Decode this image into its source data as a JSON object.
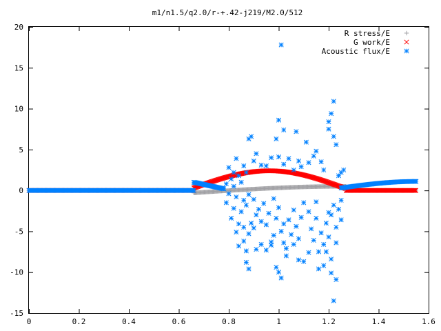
{
  "chart_data": {
    "type": "scatter",
    "title": "m1/n1.5/q2.0/r-+.42-j219/M2.0/512",
    "xlabel": "",
    "ylabel": "",
    "xlim": [
      0,
      1.6
    ],
    "ylim": [
      -15,
      20
    ],
    "x_ticks": [
      "0",
      "0.2",
      "0.4",
      "0.6",
      "0.8",
      "1",
      "1.2",
      "1.4",
      "1.6"
    ],
    "y_ticks": [
      "20",
      "15",
      "10",
      "5",
      "0",
      "-5",
      "-10",
      "-15"
    ],
    "grid": false,
    "legend_position": "top-right",
    "series": [
      {
        "name": "R stress/E",
        "color": "#a0a0a4",
        "marker": "plus",
        "segments": [
          {
            "x_start": 0.0,
            "x_end": 0.66,
            "shape": "flat",
            "y0": 0
          },
          {
            "x_start": 0.66,
            "x_end": 1.27,
            "shape": "rise",
            "y0": -0.3,
            "y1": 0.5
          },
          {
            "x_start": 1.27,
            "x_end": 1.55,
            "shape": "flat",
            "y0": 0
          }
        ]
      },
      {
        "name": "G work/E",
        "color": "#ff0000",
        "marker": "cross",
        "segments": [
          {
            "x_start": 0.0,
            "x_end": 0.66,
            "shape": "flat",
            "y0": 0
          },
          {
            "x_start": 0.66,
            "x_end": 1.27,
            "shape": "hump",
            "y0": 0.3,
            "peak": 2.4,
            "y1": 0.2
          },
          {
            "x_start": 1.27,
            "x_end": 1.55,
            "shape": "flat",
            "y0": 0
          }
        ]
      },
      {
        "name": "Acoustic flux/E",
        "color": "#0080ff",
        "marker": "star",
        "segments": [
          {
            "x_start": 0.0,
            "x_end": 0.66,
            "shape": "flat",
            "y0": 0
          },
          {
            "x_start": 0.66,
            "x_end": 0.78,
            "shape": "line",
            "y0": 1.0,
            "y1": 0.2
          },
          {
            "x_start": 1.25,
            "x_end": 1.55,
            "shape": "rise",
            "y0": 0.3,
            "y1": 1.1
          }
        ],
        "scatter": [
          [
            1.01,
            17.8
          ],
          [
            1.22,
            10.9
          ],
          [
            1.21,
            9.4
          ],
          [
            1.2,
            8.4
          ],
          [
            1.2,
            7.5
          ],
          [
            1.23,
            5.6
          ],
          [
            1.22,
            6.6
          ],
          [
            1.0,
            8.6
          ],
          [
            1.02,
            7.4
          ],
          [
            1.07,
            7.2
          ],
          [
            0.99,
            6.3
          ],
          [
            1.11,
            5.9
          ],
          [
            1.12,
            3.4
          ],
          [
            1.15,
            4.8
          ],
          [
            1.17,
            3.5
          ],
          [
            1.18,
            2.5
          ],
          [
            0.89,
            6.6
          ],
          [
            0.88,
            6.3
          ],
          [
            0.91,
            4.5
          ],
          [
            0.9,
            3.6
          ],
          [
            0.93,
            3.1
          ],
          [
            0.83,
            3.9
          ],
          [
            0.86,
            3.0
          ],
          [
            0.87,
            2.2
          ],
          [
            0.82,
            2.2
          ],
          [
            0.8,
            2.8
          ],
          [
            0.97,
            4.0
          ],
          [
            0.95,
            3.0
          ],
          [
            1.04,
            3.9
          ],
          [
            1.0,
            4.1
          ],
          [
            1.02,
            3.2
          ],
          [
            1.08,
            3.6
          ],
          [
            1.06,
            2.5
          ],
          [
            1.14,
            4.2
          ],
          [
            1.09,
            2.9
          ],
          [
            1.25,
            2.2
          ],
          [
            1.26,
            2.5
          ],
          [
            1.24,
            1.8
          ],
          [
            0.79,
            0.8
          ],
          [
            0.82,
            0.5
          ],
          [
            0.85,
            1.0
          ],
          [
            0.81,
            1.4
          ],
          [
            0.84,
            1.8
          ],
          [
            0.8,
            -0.4
          ],
          [
            0.83,
            -0.8
          ],
          [
            0.86,
            -1.2
          ],
          [
            0.79,
            -1.5
          ],
          [
            0.82,
            -2.2
          ],
          [
            0.88,
            -0.5
          ],
          [
            0.87,
            -1.8
          ],
          [
            0.85,
            -2.6
          ],
          [
            0.81,
            -3.4
          ],
          [
            0.84,
            -4.1
          ],
          [
            0.9,
            -1.1
          ],
          [
            0.92,
            -2.3
          ],
          [
            0.91,
            -3.0
          ],
          [
            0.93,
            -3.8
          ],
          [
            0.89,
            -4.0
          ],
          [
            0.86,
            -4.5
          ],
          [
            0.83,
            -5.1
          ],
          [
            0.88,
            -5.3
          ],
          [
            0.9,
            -4.6
          ],
          [
            0.95,
            -4.2
          ],
          [
            0.96,
            -2.8
          ],
          [
            0.94,
            -1.6
          ],
          [
            0.98,
            -1.0
          ],
          [
            1.0,
            -2.1
          ],
          [
            0.99,
            -3.4
          ],
          [
            1.02,
            -4.1
          ],
          [
            1.01,
            -5.0
          ],
          [
            0.98,
            -5.5
          ],
          [
            0.97,
            -6.3
          ],
          [
            0.93,
            -6.6
          ],
          [
            0.86,
            -6.2
          ],
          [
            0.84,
            -6.8
          ],
          [
            0.87,
            -7.4
          ],
          [
            0.91,
            -7.2
          ],
          [
            0.95,
            -7.3
          ],
          [
            0.97,
            -6.7
          ],
          [
            1.02,
            -6.4
          ],
          [
            1.03,
            -7.1
          ],
          [
            1.06,
            -6.6
          ],
          [
            1.05,
            -5.4
          ],
          [
            1.08,
            -5.9
          ],
          [
            1.07,
            -4.4
          ],
          [
            1.04,
            -3.6
          ],
          [
            1.06,
            -2.4
          ],
          [
            1.1,
            -1.5
          ],
          [
            1.12,
            -2.6
          ],
          [
            1.09,
            -3.3
          ],
          [
            1.13,
            -4.7
          ],
          [
            1.15,
            -3.4
          ],
          [
            1.14,
            -6.1
          ],
          [
            1.17,
            -5.2
          ],
          [
            1.18,
            -6.6
          ],
          [
            1.16,
            -7.5
          ],
          [
            1.12,
            -7.6
          ],
          [
            1.1,
            -8.7
          ],
          [
            1.08,
            -8.5
          ],
          [
            1.19,
            -4.0
          ],
          [
            1.2,
            -2.7
          ],
          [
            1.22,
            -1.8
          ],
          [
            1.24,
            -2.3
          ],
          [
            1.21,
            -3.0
          ],
          [
            1.23,
            -4.5
          ],
          [
            1.25,
            -3.6
          ],
          [
            1.2,
            -5.7
          ],
          [
            1.23,
            -6.4
          ],
          [
            1.19,
            -7.5
          ],
          [
            1.21,
            -8.4
          ],
          [
            1.18,
            -9.2
          ],
          [
            1.16,
            -9.6
          ],
          [
            1.21,
            -10.1
          ],
          [
            1.23,
            -10.9
          ],
          [
            1.22,
            -13.5
          ],
          [
            1.01,
            -10.7
          ],
          [
            0.99,
            -9.4
          ],
          [
            1.0,
            -10.0
          ],
          [
            0.88,
            -9.6
          ],
          [
            0.87,
            -8.8
          ],
          [
            1.03,
            -8.0
          ],
          [
            1.25,
            -1.2
          ],
          [
            1.15,
            -1.4
          ]
        ]
      }
    ]
  }
}
